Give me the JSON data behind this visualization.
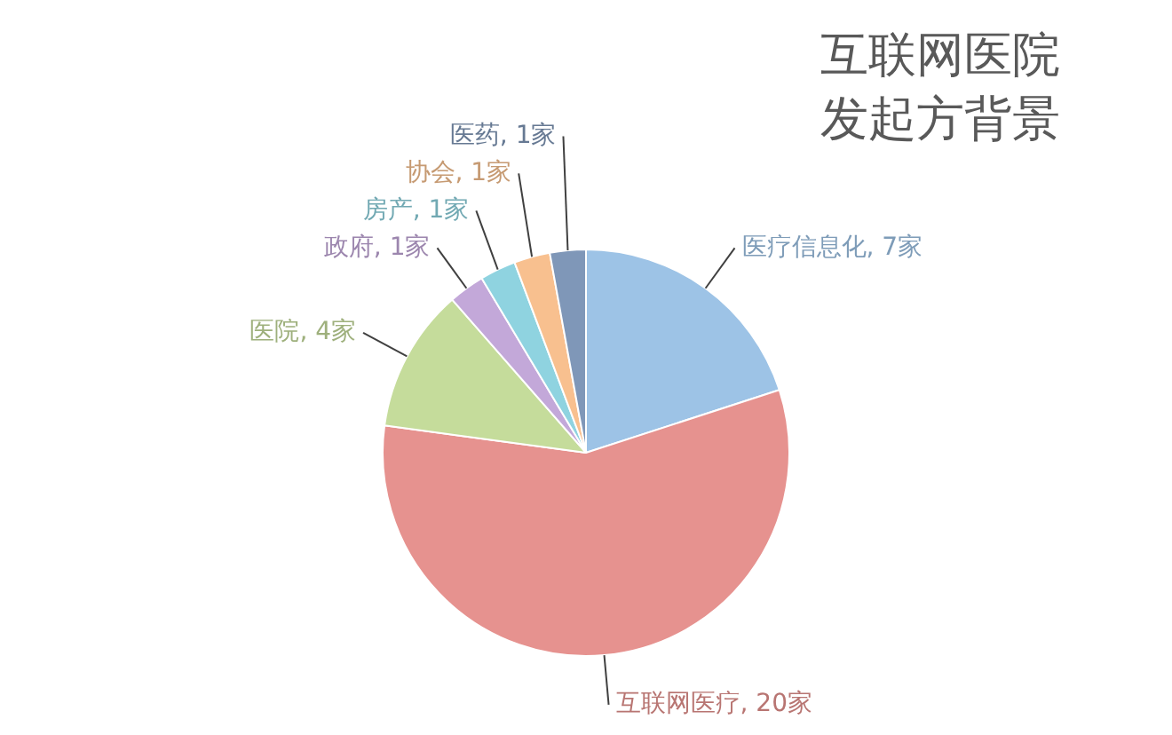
{
  "chart_data": {
    "type": "pie",
    "title": "互联网医院发起方背景",
    "categories": [
      "医疗信息化",
      "互联网医疗",
      "医院",
      "政府",
      "房产",
      "协会",
      "医药"
    ],
    "values": [
      7,
      20,
      4,
      1,
      1,
      1,
      1
    ],
    "value_labels": [
      "7家",
      "20家",
      "4家",
      "1家",
      "1家",
      "1家",
      "1家"
    ],
    "colors": [
      "#9dc3e6",
      "#e6928f",
      "#c5dc9b",
      "#c3a8d9",
      "#8fd3e0",
      "#f8c08f",
      "#7f97b8"
    ],
    "legend": false
  }
}
